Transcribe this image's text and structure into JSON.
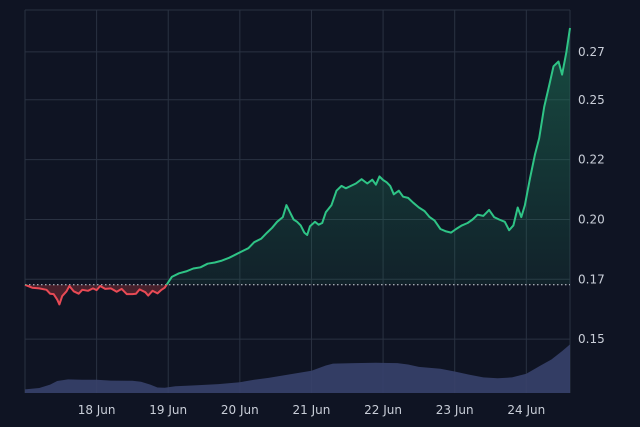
{
  "chart_data": {
    "type": "line",
    "y_ticks": [
      {
        "label": "0.27",
        "value": 0.27
      },
      {
        "label": "0.25",
        "value": 0.25
      },
      {
        "label": "0.22",
        "value": 0.225
      },
      {
        "label": "0.20",
        "value": 0.2
      },
      {
        "label": "0.17",
        "value": 0.175
      },
      {
        "label": "0.15",
        "value": 0.15
      }
    ],
    "x_ticks": [
      {
        "label": "18 Jun",
        "value": 1.0
      },
      {
        "label": "19 Jun",
        "value": 2.0
      },
      {
        "label": "20 Jun",
        "value": 3.0
      },
      {
        "label": "21 Jun",
        "value": 4.0
      },
      {
        "label": "22 Jun",
        "value": 5.0
      },
      {
        "label": "23 Jun",
        "value": 6.0
      },
      {
        "label": "24 Jun",
        "value": 7.0
      }
    ],
    "baseline": 0.1727,
    "ylim": [
      0.1275,
      0.2875
    ],
    "xlim": [
      0.0,
      7.61
    ],
    "price_series": [
      [
        0.0,
        0.1727
      ],
      [
        0.1,
        0.1715
      ],
      [
        0.2,
        0.1712
      ],
      [
        0.3,
        0.1706
      ],
      [
        0.35,
        0.169
      ],
      [
        0.4,
        0.1688
      ],
      [
        0.45,
        0.1665
      ],
      [
        0.48,
        0.1645
      ],
      [
        0.52,
        0.168
      ],
      [
        0.58,
        0.17
      ],
      [
        0.62,
        0.1722
      ],
      [
        0.68,
        0.17
      ],
      [
        0.75,
        0.169
      ],
      [
        0.8,
        0.1706
      ],
      [
        0.88,
        0.1702
      ],
      [
        0.95,
        0.1712
      ],
      [
        1.0,
        0.1705
      ],
      [
        1.05,
        0.1722
      ],
      [
        1.12,
        0.171
      ],
      [
        1.2,
        0.1712
      ],
      [
        1.28,
        0.1698
      ],
      [
        1.35,
        0.171
      ],
      [
        1.42,
        0.1688
      ],
      [
        1.5,
        0.1688
      ],
      [
        1.55,
        0.169
      ],
      [
        1.6,
        0.1708
      ],
      [
        1.68,
        0.1696
      ],
      [
        1.72,
        0.1682
      ],
      [
        1.78,
        0.1702
      ],
      [
        1.85,
        0.1691
      ],
      [
        1.9,
        0.1705
      ],
      [
        1.95,
        0.1715
      ],
      [
        1.99,
        0.1733
      ],
      [
        2.05,
        0.176
      ],
      [
        2.15,
        0.1775
      ],
      [
        2.25,
        0.1783
      ],
      [
        2.35,
        0.1795
      ],
      [
        2.45,
        0.18
      ],
      [
        2.55,
        0.1815
      ],
      [
        2.65,
        0.182
      ],
      [
        2.75,
        0.1828
      ],
      [
        2.85,
        0.184
      ],
      [
        2.95,
        0.1855
      ],
      [
        3.05,
        0.187
      ],
      [
        3.12,
        0.188
      ],
      [
        3.2,
        0.1905
      ],
      [
        3.3,
        0.192
      ],
      [
        3.38,
        0.1945
      ],
      [
        3.45,
        0.1965
      ],
      [
        3.52,
        0.199
      ],
      [
        3.6,
        0.201
      ],
      [
        3.65,
        0.206
      ],
      [
        3.7,
        0.203
      ],
      [
        3.75,
        0.2
      ],
      [
        3.8,
        0.199
      ],
      [
        3.85,
        0.1975
      ],
      [
        3.9,
        0.1945
      ],
      [
        3.94,
        0.1935
      ],
      [
        3.98,
        0.1972
      ],
      [
        4.05,
        0.199
      ],
      [
        4.1,
        0.1978
      ],
      [
        4.15,
        0.1985
      ],
      [
        4.2,
        0.203
      ],
      [
        4.28,
        0.206
      ],
      [
        4.35,
        0.212
      ],
      [
        4.42,
        0.214
      ],
      [
        4.48,
        0.213
      ],
      [
        4.55,
        0.214
      ],
      [
        4.62,
        0.215
      ],
      [
        4.7,
        0.2168
      ],
      [
        4.78,
        0.215
      ],
      [
        4.85,
        0.2166
      ],
      [
        4.9,
        0.2145
      ],
      [
        4.95,
        0.218
      ],
      [
        5.0,
        0.2165
      ],
      [
        5.05,
        0.2155
      ],
      [
        5.1,
        0.214
      ],
      [
        5.15,
        0.2105
      ],
      [
        5.22,
        0.212
      ],
      [
        5.28,
        0.2095
      ],
      [
        5.35,
        0.209
      ],
      [
        5.42,
        0.207
      ],
      [
        5.5,
        0.205
      ],
      [
        5.58,
        0.2035
      ],
      [
        5.65,
        0.201
      ],
      [
        5.72,
        0.1995
      ],
      [
        5.8,
        0.196
      ],
      [
        5.88,
        0.195
      ],
      [
        5.95,
        0.1945
      ],
      [
        6.02,
        0.196
      ],
      [
        6.1,
        0.1975
      ],
      [
        6.18,
        0.1985
      ],
      [
        6.25,
        0.2
      ],
      [
        6.32,
        0.202
      ],
      [
        6.4,
        0.2015
      ],
      [
        6.48,
        0.204
      ],
      [
        6.55,
        0.201
      ],
      [
        6.62,
        0.2
      ],
      [
        6.7,
        0.199
      ],
      [
        6.76,
        0.1955
      ],
      [
        6.82,
        0.1975
      ],
      [
        6.88,
        0.205
      ],
      [
        6.93,
        0.201
      ],
      [
        6.98,
        0.206
      ],
      [
        7.05,
        0.217
      ],
      [
        7.12,
        0.227
      ],
      [
        7.18,
        0.234
      ],
      [
        7.25,
        0.247
      ],
      [
        7.32,
        0.256
      ],
      [
        7.38,
        0.264
      ],
      [
        7.45,
        0.266
      ],
      [
        7.5,
        0.2605
      ],
      [
        7.56,
        0.27
      ],
      [
        7.61,
        0.28
      ]
    ],
    "volume_series": [
      [
        0.0,
        0.129
      ],
      [
        0.2,
        0.1296
      ],
      [
        0.35,
        0.131
      ],
      [
        0.45,
        0.1325
      ],
      [
        0.6,
        0.1332
      ],
      [
        0.8,
        0.133
      ],
      [
        1.0,
        0.133
      ],
      [
        1.2,
        0.1327
      ],
      [
        1.5,
        0.1326
      ],
      [
        1.62,
        0.1322
      ],
      [
        1.75,
        0.131
      ],
      [
        1.85,
        0.1298
      ],
      [
        1.95,
        0.1297
      ],
      [
        2.1,
        0.1303
      ],
      [
        2.4,
        0.1307
      ],
      [
        2.7,
        0.1312
      ],
      [
        3.0,
        0.132
      ],
      [
        3.2,
        0.133
      ],
      [
        3.4,
        0.1338
      ],
      [
        3.6,
        0.1348
      ],
      [
        3.8,
        0.1358
      ],
      [
        4.0,
        0.1368
      ],
      [
        4.2,
        0.139
      ],
      [
        4.3,
        0.1398
      ],
      [
        4.6,
        0.14
      ],
      [
        4.9,
        0.1401
      ],
      [
        5.2,
        0.14
      ],
      [
        5.35,
        0.1394
      ],
      [
        5.5,
        0.1384
      ],
      [
        5.8,
        0.1376
      ],
      [
        6.0,
        0.1365
      ],
      [
        6.2,
        0.1352
      ],
      [
        6.4,
        0.134
      ],
      [
        6.6,
        0.1337
      ],
      [
        6.8,
        0.134
      ],
      [
        7.0,
        0.1355
      ],
      [
        7.2,
        0.139
      ],
      [
        7.35,
        0.1415
      ],
      [
        7.5,
        0.145
      ],
      [
        7.61,
        0.1478
      ]
    ],
    "colors": {
      "background": "#0f1423",
      "grid": "#2a3242",
      "up_line": "#2fc486",
      "down_line": "#e84a55",
      "up_fill": "#1f7a5a",
      "down_fill": "#7a2a33",
      "volume": "#37416b",
      "tick_text": "#c9ced8",
      "baseline": "#cfd4dc"
    },
    "grid": true,
    "legend": "none"
  }
}
